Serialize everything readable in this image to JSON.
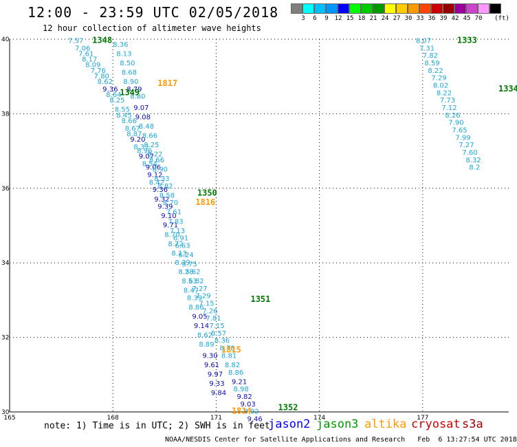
{
  "title": "12:00 - 23:59 UTC 02/05/2018",
  "subtitle": "12 hour collection of altimeter wave heights",
  "color_scale": {
    "unit": "(ft)",
    "swatches": [
      {
        "label": "",
        "color": "#808080"
      },
      {
        "label": "3",
        "color": "#00ffff"
      },
      {
        "label": "6",
        "color": "#00bfff"
      },
      {
        "label": "9",
        "color": "#0096ff"
      },
      {
        "label": "12",
        "color": "#0000ff"
      },
      {
        "label": "15",
        "color": "#00ff00"
      },
      {
        "label": "18",
        "color": "#00cc00"
      },
      {
        "label": "21",
        "color": "#009900"
      },
      {
        "label": "24",
        "color": "#ffff00"
      },
      {
        "label": "27",
        "color": "#ffcc00"
      },
      {
        "label": "30",
        "color": "#ff9900"
      },
      {
        "label": "33",
        "color": "#ff4400"
      },
      {
        "label": "36",
        "color": "#cc0000"
      },
      {
        "label": "39",
        "color": "#990000"
      },
      {
        "label": "42",
        "color": "#990099"
      },
      {
        "label": "45",
        "color": "#cc44cc"
      },
      {
        "label": "70",
        "color": "#ff99ff"
      },
      {
        "label": "",
        "color": "#000000"
      }
    ]
  },
  "axes": {
    "x_ticks": [
      "165",
      "168",
      "171",
      "174",
      "177"
    ],
    "y_ticks": [
      "40",
      "38",
      "36",
      "34",
      "32",
      "30"
    ],
    "xlim": [
      165,
      179.5
    ],
    "ylim": [
      30,
      40
    ]
  },
  "colors": {
    "light": "#1ba6d8",
    "dark": "#0a0ab4",
    "j3": "#007a00",
    "altika": "#ff9900",
    "cryosat": "#cc0000",
    "s3a": "#990000"
  },
  "chart_data": {
    "type": "scatter",
    "tracks": [
      {
        "track": "A",
        "points": [
          {
            "lon": 166.7,
            "lat": 39.9,
            "v": "7.57"
          },
          {
            "lon": 166.9,
            "lat": 39.7,
            "v": "7.06"
          },
          {
            "lon": 167.0,
            "lat": 39.55,
            "v": "7.61"
          },
          {
            "lon": 167.1,
            "lat": 39.4,
            "v": "8.17"
          },
          {
            "lon": 167.2,
            "lat": 39.25,
            "v": "8.09"
          },
          {
            "lon": 167.35,
            "lat": 39.1,
            "v": "7.76"
          },
          {
            "lon": 167.45,
            "lat": 38.95,
            "v": "7.80"
          },
          {
            "lon": 167.55,
            "lat": 38.8,
            "v": "8.62"
          },
          {
            "lon": 167.7,
            "lat": 38.6,
            "v": "9.36",
            "dark": true
          },
          {
            "lon": 167.8,
            "lat": 38.45,
            "v": "8.64"
          },
          {
            "lon": 167.9,
            "lat": 38.3,
            "v": "8.25"
          },
          {
            "lon": 168.05,
            "lat": 38.05,
            "v": "8.55"
          },
          {
            "lon": 168.1,
            "lat": 37.9,
            "v": "8.45"
          },
          {
            "lon": 168.25,
            "lat": 37.75,
            "v": "8.66"
          },
          {
            "lon": 168.35,
            "lat": 37.55,
            "v": "8.67"
          },
          {
            "lon": 168.4,
            "lat": 37.4,
            "v": "8.87"
          },
          {
            "lon": 168.5,
            "lat": 37.25,
            "v": "9.20",
            "dark": true
          },
          {
            "lon": 168.6,
            "lat": 37.05,
            "v": "8.33"
          },
          {
            "lon": 168.7,
            "lat": 36.95,
            "v": "8.96"
          },
          {
            "lon": 168.75,
            "lat": 36.8,
            "v": "9.07",
            "dark": true
          },
          {
            "lon": 168.85,
            "lat": 36.6,
            "v": "8.54"
          },
          {
            "lon": 168.95,
            "lat": 36.5,
            "v": "9.06",
            "dark": true
          },
          {
            "lon": 169.0,
            "lat": 36.3,
            "v": "9.12",
            "dark": true
          },
          {
            "lon": 169.05,
            "lat": 36.1,
            "v": "8.42"
          },
          {
            "lon": 169.15,
            "lat": 35.9,
            "v": "9.36",
            "dark": true
          },
          {
            "lon": 169.2,
            "lat": 35.65,
            "v": "9.32",
            "dark": true
          },
          {
            "lon": 169.3,
            "lat": 35.45,
            "v": "9.39",
            "dark": true
          },
          {
            "lon": 169.4,
            "lat": 35.2,
            "v": "9.10",
            "dark": true
          },
          {
            "lon": 169.45,
            "lat": 34.95,
            "v": "9.71",
            "dark": true
          },
          {
            "lon": 169.5,
            "lat": 34.7,
            "v": "8.70"
          },
          {
            "lon": 169.6,
            "lat": 34.45,
            "v": "8.72"
          },
          {
            "lon": 169.7,
            "lat": 34.2,
            "v": "8.13"
          },
          {
            "lon": 169.8,
            "lat": 33.95,
            "v": "8.39"
          },
          {
            "lon": 169.9,
            "lat": 33.7,
            "v": "8.28"
          },
          {
            "lon": 170.0,
            "lat": 33.45,
            "v": "8.53"
          },
          {
            "lon": 170.05,
            "lat": 33.2,
            "v": "8.47"
          },
          {
            "lon": 170.15,
            "lat": 33.0,
            "v": "8.39"
          },
          {
            "lon": 170.2,
            "lat": 32.75,
            "v": "8.86"
          },
          {
            "lon": 170.3,
            "lat": 32.5,
            "v": "9.05",
            "dark": true
          },
          {
            "lon": 170.35,
            "lat": 32.25,
            "v": "9.14",
            "dark": true
          },
          {
            "lon": 170.45,
            "lat": 32.0,
            "v": "8.62"
          },
          {
            "lon": 170.5,
            "lat": 31.75,
            "v": "8.89"
          },
          {
            "lon": 170.6,
            "lat": 31.45,
            "v": "9.30",
            "dark": true
          },
          {
            "lon": 170.65,
            "lat": 31.2,
            "v": "9.61",
            "dark": true
          },
          {
            "lon": 170.75,
            "lat": 30.95,
            "v": "9.97",
            "dark": true
          },
          {
            "lon": 170.8,
            "lat": 30.7,
            "v": "9.33",
            "dark": true
          },
          {
            "lon": 170.85,
            "lat": 30.45,
            "v": "9.84",
            "dark": true
          }
        ]
      },
      {
        "track": "B",
        "points": [
          {
            "lon": 168.0,
            "lat": 39.8,
            "v": "8.36"
          },
          {
            "lon": 168.1,
            "lat": 39.55,
            "v": "8.13"
          },
          {
            "lon": 168.2,
            "lat": 39.3,
            "v": "8.50"
          },
          {
            "lon": 168.25,
            "lat": 39.05,
            "v": "8.68"
          },
          {
            "lon": 168.3,
            "lat": 38.8,
            "v": "8.90"
          },
          {
            "lon": 168.4,
            "lat": 38.6,
            "v": "8.79",
            "dark": true
          },
          {
            "lon": 168.5,
            "lat": 38.4,
            "v": "8.80"
          },
          {
            "lon": 168.6,
            "lat": 38.1,
            "v": "9.07",
            "dark": true
          },
          {
            "lon": 168.65,
            "lat": 37.85,
            "v": "9.08",
            "dark": true
          },
          {
            "lon": 168.75,
            "lat": 37.6,
            "v": "8.48"
          },
          {
            "lon": 168.85,
            "lat": 37.35,
            "v": "8.66"
          },
          {
            "lon": 168.9,
            "lat": 37.1,
            "v": "8.25"
          },
          {
            "lon": 169.0,
            "lat": 36.85,
            "v": "8.22"
          },
          {
            "lon": 169.05,
            "lat": 36.7,
            "v": "8.66"
          },
          {
            "lon": 169.15,
            "lat": 36.45,
            "v": "8.90"
          },
          {
            "lon": 169.2,
            "lat": 36.2,
            "v": "8.33"
          },
          {
            "lon": 169.3,
            "lat": 36.0,
            "v": "8.82"
          },
          {
            "lon": 169.35,
            "lat": 35.75,
            "v": "8.58"
          },
          {
            "lon": 169.45,
            "lat": 35.55,
            "v": "8.70"
          },
          {
            "lon": 169.55,
            "lat": 35.3,
            "v": "7.61"
          },
          {
            "lon": 169.6,
            "lat": 35.05,
            "v": "7.83"
          },
          {
            "lon": 169.65,
            "lat": 34.8,
            "v": "7.13"
          },
          {
            "lon": 169.75,
            "lat": 34.6,
            "v": "6.91"
          },
          {
            "lon": 169.8,
            "lat": 34.4,
            "v": "6.63"
          },
          {
            "lon": 169.9,
            "lat": 34.15,
            "v": "6.24"
          },
          {
            "lon": 170.0,
            "lat": 33.9,
            "v": "5.75"
          },
          {
            "lon": 170.1,
            "lat": 33.7,
            "v": "5.62"
          },
          {
            "lon": 170.2,
            "lat": 33.45,
            "v": "6.82"
          },
          {
            "lon": 170.3,
            "lat": 33.25,
            "v": "7.27"
          },
          {
            "lon": 170.4,
            "lat": 33.05,
            "v": "7.29"
          },
          {
            "lon": 170.5,
            "lat": 32.85,
            "v": "7.15"
          },
          {
            "lon": 170.6,
            "lat": 32.65,
            "v": "7.26"
          },
          {
            "lon": 170.7,
            "lat": 32.45,
            "v": "7.81"
          },
          {
            "lon": 170.8,
            "lat": 32.25,
            "v": "7.15"
          },
          {
            "lon": 170.85,
            "lat": 32.05,
            "v": "8.57"
          },
          {
            "lon": 170.95,
            "lat": 31.85,
            "v": "8.36"
          },
          {
            "lon": 171.1,
            "lat": 31.65,
            "v": "8.78"
          },
          {
            "lon": 171.15,
            "lat": 31.45,
            "v": "8.81"
          },
          {
            "lon": 171.25,
            "lat": 31.2,
            "v": "8.82"
          },
          {
            "lon": 171.35,
            "lat": 31.0,
            "v": "8.86"
          },
          {
            "lon": 171.45,
            "lat": 30.75,
            "v": "9.21",
            "dark": true
          },
          {
            "lon": 171.5,
            "lat": 30.55,
            "v": "8.98"
          },
          {
            "lon": 171.6,
            "lat": 30.35,
            "v": "9.82",
            "dark": true
          },
          {
            "lon": 171.7,
            "lat": 30.15,
            "v": "9.03",
            "dark": true
          },
          {
            "lon": 171.8,
            "lat": 29.95,
            "v": "8.92"
          },
          {
            "lon": 171.9,
            "lat": 29.75,
            "v": "9.46",
            "dark": true
          }
        ]
      },
      {
        "track": "C",
        "points": [
          {
            "lon": 176.8,
            "lat": 39.9,
            "v": "8.07"
          },
          {
            "lon": 176.9,
            "lat": 39.7,
            "v": "7.31"
          },
          {
            "lon": 177.0,
            "lat": 39.5,
            "v": "7.82"
          },
          {
            "lon": 177.05,
            "lat": 39.3,
            "v": "8.59"
          },
          {
            "lon": 177.15,
            "lat": 39.1,
            "v": "8.22"
          },
          {
            "lon": 177.25,
            "lat": 38.9,
            "v": "7.29"
          },
          {
            "lon": 177.3,
            "lat": 38.7,
            "v": "8.02"
          },
          {
            "lon": 177.4,
            "lat": 38.5,
            "v": "8.22"
          },
          {
            "lon": 177.5,
            "lat": 38.3,
            "v": "7.73"
          },
          {
            "lon": 177.55,
            "lat": 38.1,
            "v": "7.12"
          },
          {
            "lon": 177.65,
            "lat": 37.9,
            "v": "8.26"
          },
          {
            "lon": 177.75,
            "lat": 37.7,
            "v": "7.90"
          },
          {
            "lon": 177.85,
            "lat": 37.5,
            "v": "7.65"
          },
          {
            "lon": 177.95,
            "lat": 37.3,
            "v": "7.99"
          },
          {
            "lon": 178.05,
            "lat": 37.1,
            "v": "7.27"
          },
          {
            "lon": 178.15,
            "lat": 36.9,
            "v": "7.60"
          },
          {
            "lon": 178.25,
            "lat": 36.7,
            "v": "8.32"
          },
          {
            "lon": 178.35,
            "lat": 36.5,
            "v": "8.2"
          }
        ]
      }
    ],
    "time_labels": [
      {
        "t": "1348",
        "lon": 167.4,
        "lat": 39.9,
        "sat": "j3"
      },
      {
        "t": "1817",
        "lon": 169.3,
        "lat": 38.75,
        "sat": "altika"
      },
      {
        "t": "1349",
        "lon": 168.2,
        "lat": 38.5,
        "sat": "j3"
      },
      {
        "t": "1350",
        "lon": 170.45,
        "lat": 35.8,
        "sat": "j3"
      },
      {
        "t": "1816",
        "lon": 170.4,
        "lat": 35.55,
        "sat": "altika"
      },
      {
        "t": "1351",
        "lon": 172.0,
        "lat": 32.95,
        "sat": "j3"
      },
      {
        "t": "1815",
        "lon": 171.15,
        "lat": 31.6,
        "sat": "altika"
      },
      {
        "t": "1814",
        "lon": 171.45,
        "lat": 29.95,
        "sat": "altika"
      },
      {
        "t": "1352",
        "lon": 172.8,
        "lat": 30.05,
        "sat": "j3"
      },
      {
        "t": "1333",
        "lon": 178.0,
        "lat": 39.9,
        "sat": "j3"
      },
      {
        "t": "1334",
        "lon": 179.2,
        "lat": 38.6,
        "sat": "j3"
      }
    ]
  },
  "note": "note: 1) Time is in UTC; 2) SWH is in feet",
  "legend": [
    {
      "label": "jason2",
      "color": "#0000ff"
    },
    {
      "label": "jason3",
      "color": "#009900"
    },
    {
      "label": "altika",
      "color": "#ff9900"
    },
    {
      "label": "cryosat",
      "color": "#cc0000"
    },
    {
      "label": "s3a",
      "color": "#990000"
    }
  ],
  "footer": "NOAA/NESDIS Center for Satellite Applications and Research   Feb  6 13:27:54 UTC 2018"
}
